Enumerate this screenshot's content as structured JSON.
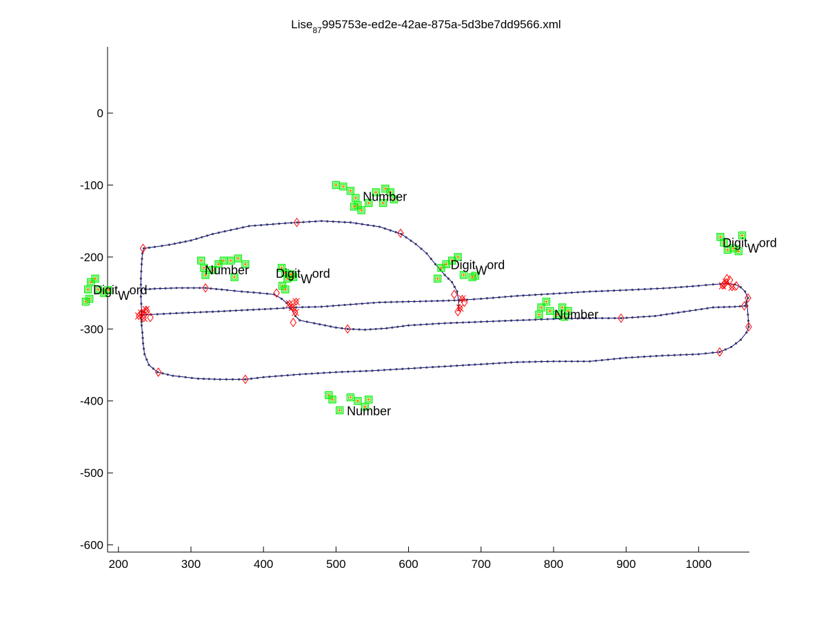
{
  "chart_data": {
    "type": "scatter",
    "title_main": "Lise",
    "title_sub": "87",
    "title_rest": "995753e-ed2e-42ae-875a-5d3be7dd9566.xml",
    "xlim": [
      185,
      1070
    ],
    "ylim": [
      -610,
      92
    ],
    "x_ticks": [
      200,
      300,
      400,
      500,
      600,
      700,
      800,
      900,
      1000
    ],
    "y_ticks": [
      0,
      -100,
      -200,
      -300,
      -400,
      -500,
      -600
    ],
    "grid": false,
    "colors": {
      "trace_line": "#00008b",
      "trace_dot": "#3a3a55",
      "turn_marker": "#ff0000",
      "stroke_box": "#00ee00",
      "stroke_dot": "#ff8800"
    },
    "trajectory": [
      [
        237,
        -245
      ],
      [
        250,
        -244
      ],
      [
        280,
        -243
      ],
      [
        320,
        -243
      ],
      [
        350,
        -246
      ],
      [
        370,
        -248
      ],
      [
        395,
        -250
      ],
      [
        415,
        -252
      ],
      [
        425,
        -258
      ],
      [
        432,
        -264
      ],
      [
        438,
        -272
      ],
      [
        444,
        -282
      ],
      [
        450,
        -288
      ],
      [
        470,
        -292
      ],
      [
        500,
        -298
      ],
      [
        516,
        -300
      ],
      [
        540,
        -301
      ],
      [
        570,
        -299
      ],
      [
        600,
        -295
      ],
      [
        650,
        -292
      ],
      [
        700,
        -290
      ],
      [
        750,
        -288
      ],
      [
        800,
        -286
      ],
      [
        850,
        -285
      ],
      [
        893,
        -285
      ],
      [
        940,
        -282
      ],
      [
        980,
        -276
      ],
      [
        1020,
        -270
      ],
      [
        1050,
        -269
      ],
      [
        1064,
        -268
      ],
      [
        1066,
        -262
      ],
      [
        1068,
        -257
      ],
      [
        1064,
        -248
      ],
      [
        1058,
        -242
      ],
      [
        1050,
        -238
      ],
      [
        1040,
        -237
      ],
      [
        1020,
        -238
      ],
      [
        1000,
        -240
      ],
      [
        960,
        -243
      ],
      [
        900,
        -246
      ],
      [
        850,
        -248
      ],
      [
        800,
        -251
      ],
      [
        750,
        -254
      ],
      [
        700,
        -258
      ],
      [
        671,
        -260
      ],
      [
        640,
        -261
      ],
      [
        600,
        -262
      ],
      [
        560,
        -263
      ],
      [
        520,
        -266
      ],
      [
        480,
        -269
      ],
      [
        445,
        -270
      ],
      [
        410,
        -272
      ],
      [
        370,
        -274
      ],
      [
        330,
        -276
      ],
      [
        280,
        -278
      ],
      [
        245,
        -280
      ],
      [
        232,
        -280
      ],
      [
        231,
        -285
      ],
      [
        232,
        -295
      ],
      [
        233,
        -305
      ],
      [
        234,
        -320
      ],
      [
        236,
        -335
      ],
      [
        242,
        -350
      ],
      [
        254,
        -360
      ],
      [
        275,
        -365
      ],
      [
        310,
        -369
      ],
      [
        340,
        -370
      ],
      [
        375,
        -370
      ],
      [
        400,
        -367
      ],
      [
        450,
        -363
      ],
      [
        500,
        -360
      ],
      [
        550,
        -358
      ],
      [
        600,
        -355
      ],
      [
        650,
        -352
      ],
      [
        700,
        -349
      ],
      [
        750,
        -346
      ],
      [
        800,
        -345
      ],
      [
        850,
        -345
      ],
      [
        900,
        -340
      ],
      [
        950,
        -337
      ],
      [
        1000,
        -335
      ],
      [
        1029,
        -332
      ],
      [
        1045,
        -325
      ],
      [
        1058,
        -315
      ],
      [
        1066,
        -305
      ],
      [
        1069,
        -297
      ],
      [
        1068,
        -280
      ],
      [
        1067,
        -268
      ],
      [
        1066,
        -262
      ]
    ],
    "upper_loop": [
      [
        232,
        -290
      ],
      [
        232,
        -275
      ],
      [
        231,
        -255
      ],
      [
        231,
        -230
      ],
      [
        232,
        -210
      ],
      [
        233,
        -195
      ],
      [
        235,
        -188
      ],
      [
        250,
        -186
      ],
      [
        270,
        -183
      ],
      [
        300,
        -177
      ],
      [
        330,
        -168
      ],
      [
        380,
        -157
      ],
      [
        430,
        -153
      ],
      [
        480,
        -150
      ],
      [
        520,
        -152
      ],
      [
        560,
        -158
      ],
      [
        590,
        -168
      ],
      [
        610,
        -182
      ],
      [
        625,
        -195
      ],
      [
        637,
        -210
      ],
      [
        650,
        -225
      ],
      [
        660,
        -235
      ],
      [
        667,
        -248
      ],
      [
        669,
        -260
      ],
      [
        669,
        -275
      ]
    ],
    "turn_points": [
      [
        234,
        -188
      ],
      [
        446,
        -152
      ],
      [
        589,
        -167
      ],
      [
        232,
        -278
      ],
      [
        244,
        -284
      ],
      [
        239,
        -275
      ],
      [
        320,
        -243
      ],
      [
        418,
        -250
      ],
      [
        441,
        -291
      ],
      [
        516,
        -300
      ],
      [
        893,
        -285
      ],
      [
        1029,
        -332
      ],
      [
        1069,
        -297
      ],
      [
        1063,
        -268
      ],
      [
        1068,
        -257
      ],
      [
        1052,
        -240
      ],
      [
        1043,
        -232
      ],
      [
        677,
        -263
      ],
      [
        668,
        -276
      ],
      [
        663,
        -252
      ],
      [
        255,
        -360
      ],
      [
        375,
        -370
      ],
      [
        1039,
        -230
      ],
      [
        1035,
        -238
      ]
    ],
    "red_clusters": [
      [
        232,
        -278
      ],
      [
        238,
        -273
      ],
      [
        228,
        -282
      ],
      [
        235,
        -285
      ],
      [
        440,
        -270
      ],
      [
        436,
        -265
      ],
      [
        444,
        -277
      ],
      [
        445,
        -262
      ],
      [
        1038,
        -235
      ],
      [
        1046,
        -242
      ],
      [
        1033,
        -240
      ],
      [
        674,
        -258
      ],
      [
        671,
        -271
      ]
    ],
    "green_symbol_groups": [
      {
        "label": "Digit",
        "points": [
          [
            158,
            -245
          ],
          [
            162,
            -235
          ],
          [
            168,
            -230
          ],
          [
            172,
            -245
          ],
          [
            180,
            -250
          ],
          [
            186,
            -246
          ],
          [
            160,
            -258
          ],
          [
            155,
            -262
          ]
        ]
      },
      {
        "label": "Number",
        "points": [
          [
            314,
            -205
          ],
          [
            318,
            -215
          ],
          [
            320,
            -225
          ],
          [
            338,
            -210
          ],
          [
            345,
            -205
          ],
          [
            355,
            -205
          ],
          [
            360,
            -228
          ],
          [
            365,
            -202
          ],
          [
            375,
            -210
          ],
          [
            330,
            -218
          ]
        ]
      },
      {
        "label": "Digit",
        "points": [
          [
            425,
            -215
          ],
          [
            430,
            -222
          ],
          [
            433,
            -230
          ],
          [
            441,
            -228
          ],
          [
            426,
            -240
          ],
          [
            430,
            -245
          ],
          [
            438,
            -224
          ]
        ]
      },
      {
        "label": "Number",
        "points": [
          [
            500,
            -100
          ],
          [
            510,
            -102
          ],
          [
            520,
            -108
          ],
          [
            527,
            -118
          ],
          [
            530,
            -128
          ],
          [
            525,
            -130
          ],
          [
            535,
            -135
          ],
          [
            545,
            -125
          ],
          [
            555,
            -110
          ],
          [
            568,
            -105
          ],
          [
            575,
            -110
          ],
          [
            580,
            -120
          ],
          [
            565,
            -125
          ]
        ]
      },
      {
        "label": "Digit",
        "points": [
          [
            640,
            -230
          ],
          [
            645,
            -215
          ],
          [
            652,
            -210
          ],
          [
            660,
            -205
          ],
          [
            668,
            -200
          ],
          [
            676,
            -225
          ],
          [
            692,
            -226
          ],
          [
            688,
            -228
          ]
        ]
      },
      {
        "label": "Digit",
        "points": [
          [
            1030,
            -172
          ],
          [
            1035,
            -180
          ],
          [
            1040,
            -190
          ],
          [
            1048,
            -188
          ],
          [
            1055,
            -192
          ],
          [
            1060,
            -170
          ]
        ]
      },
      {
        "label": "Number",
        "points": [
          [
            780,
            -280
          ],
          [
            783,
            -270
          ],
          [
            790,
            -262
          ],
          [
            795,
            -275
          ],
          [
            805,
            -280
          ],
          [
            815,
            -283
          ],
          [
            820,
            -275
          ],
          [
            812,
            -270
          ]
        ]
      },
      {
        "label": "Number",
        "points": [
          [
            490,
            -392
          ],
          [
            495,
            -398
          ],
          [
            505,
            -413
          ],
          [
            520,
            -395
          ],
          [
            530,
            -400
          ],
          [
            540,
            -408
          ],
          [
            545,
            -398
          ]
        ]
      }
    ],
    "annotations": [
      {
        "type": "word",
        "text": "Number",
        "x": 537,
        "y": -122
      },
      {
        "type": "digit_word",
        "text": "Digit",
        "sub": "W",
        "tail": "ord",
        "x": 1033,
        "y": -186
      },
      {
        "type": "word",
        "text": "Number",
        "x": 319,
        "y": -224
      },
      {
        "type": "digit_word",
        "text": "Digit",
        "sub": "W",
        "tail": "ord",
        "x": 417,
        "y": -229
      },
      {
        "type": "digit_word",
        "text": "Digit",
        "sub": "W",
        "tail": "ord",
        "x": 658,
        "y": -217
      },
      {
        "type": "digit_word",
        "text": "Digit",
        "sub": "W",
        "tail": "ord",
        "x": 165,
        "y": -252
      },
      {
        "type": "word",
        "text": "Number",
        "x": 801,
        "y": -286
      },
      {
        "type": "word",
        "text": "Number",
        "x": 515,
        "y": -420
      }
    ]
  }
}
